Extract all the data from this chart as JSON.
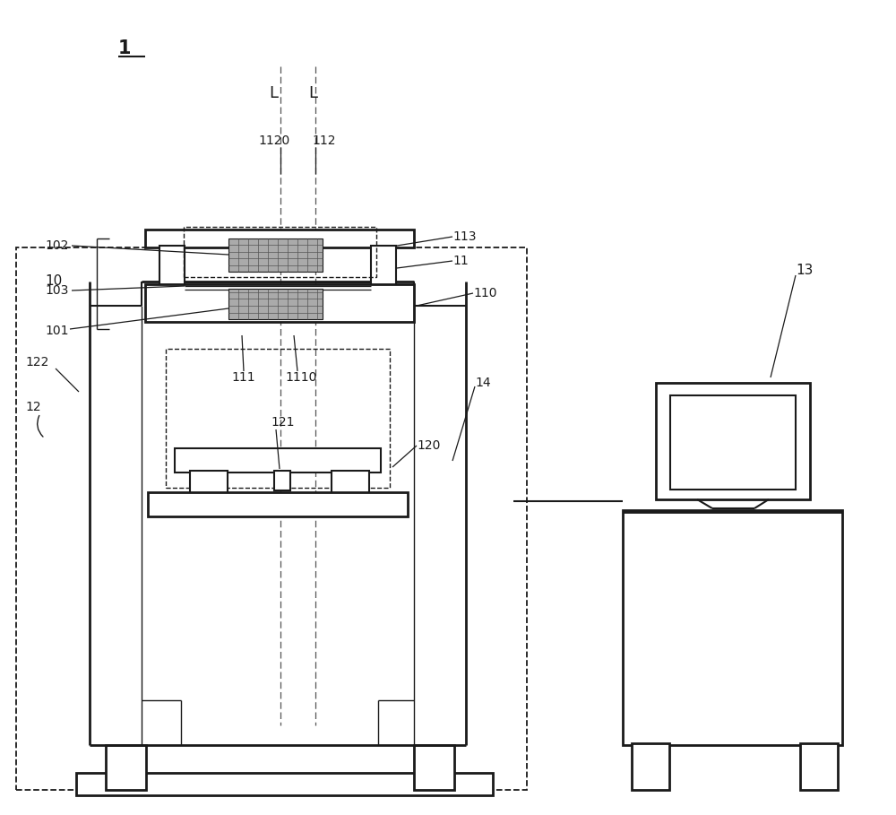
{
  "bg": "#ffffff",
  "lc": "#1a1a1a",
  "gray": "#aaaaaa",
  "grid_lc": "#555555",
  "label_1": "1",
  "label_10": "10",
  "label_11": "11",
  "label_101": "101",
  "label_102": "102",
  "label_103": "103",
  "label_110": "110",
  "label_111": "111",
  "label_112": "112",
  "label_113": "113",
  "label_120": "120",
  "label_121": "121",
  "label_122": "122",
  "label_12": "12",
  "label_1110": "1110",
  "label_1120": "1120",
  "label_13": "13",
  "label_14": "14",
  "label_L1": "L",
  "label_L2": "L"
}
